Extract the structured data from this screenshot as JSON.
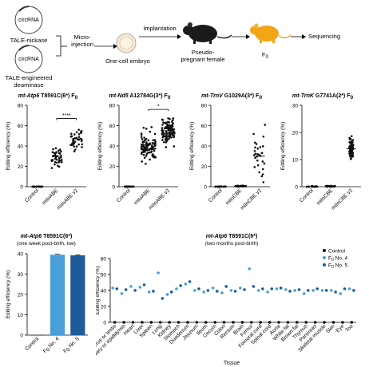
{
  "schematic": {
    "circle_label": "circRNA",
    "nickase_label": "TALE-nickase",
    "deaminase_label_1": "TALE-engineered",
    "deaminase_label_2": "deaminase",
    "micro_label_1": "Micro-",
    "micro_label_2": "injection",
    "embryo_label": "One-cell embryo",
    "implant_label": "Implantation",
    "pseudo_label_1": "Pseudo-",
    "pseudo_label_2": "pregnant female",
    "f0_label": "F",
    "f0_sub": "0",
    "seq_label": "Sequencing",
    "colors": {
      "mouse_black": "#1a1a1a",
      "mouse_orange": "#f2a516",
      "embryo": "#f6ead0"
    }
  },
  "chart_data": [
    {
      "type": "scatter",
      "title_gene": "mt-Atp6",
      "title_rest": " T8591C(6*) F",
      "title_sub": "0",
      "ylabel": "Editing efficiency (%)",
      "ylim": [
        0,
        80
      ],
      "yticks": [
        "0",
        "20",
        "40",
        "60",
        "80"
      ],
      "categories": [
        "Control",
        "mitoABE",
        "mitoABE v2"
      ],
      "groups": [
        {
          "n": 20,
          "mean": 0,
          "spread": 0.3
        },
        {
          "n": 40,
          "mean": 30,
          "spread": 8
        },
        {
          "n": 40,
          "mean": 47,
          "spread": 9
        }
      ],
      "significance": "****",
      "sig_between": [
        1,
        2
      ],
      "sig_y": 67
    },
    {
      "type": "scatter",
      "title_gene": "mt-Nd5",
      "title_rest": " A12784G(3*) F",
      "title_sub": "0",
      "ylabel": "Editing efficiency (%)",
      "ylim": [
        0,
        80
      ],
      "yticks": [
        "0",
        "20",
        "40",
        "60",
        "80"
      ],
      "categories": [
        "Control",
        "mitoABE",
        "mitoABE v2"
      ],
      "groups": [
        {
          "n": 20,
          "mean": 0,
          "spread": 0.3
        },
        {
          "n": 90,
          "mean": 41,
          "spread": 12
        },
        {
          "n": 110,
          "mean": 55,
          "spread": 10
        }
      ],
      "significance": "*",
      "sig_between": [
        1,
        2
      ],
      "sig_y": 76
    },
    {
      "type": "scatter",
      "title_gene": "mt-TrnV",
      "title_rest": " G1029A(3*) F",
      "title_sub": "0",
      "ylabel": "Editing efficiency (%)",
      "ylim": [
        0,
        80
      ],
      "yticks": [
        "0",
        "20",
        "40",
        "60",
        "80"
      ],
      "categories": [
        "Control",
        "mitoCBE",
        "mitoCBE v2"
      ],
      "groups": [
        {
          "n": 20,
          "mean": 0,
          "spread": 0.3
        },
        {
          "n": 25,
          "mean": 0.5,
          "spread": 0.5
        },
        {
          "n": 30,
          "mean": 30,
          "spread": 18
        }
      ],
      "significance": "",
      "sig_between": [],
      "sig_y": 0
    },
    {
      "type": "scatter",
      "title_gene": "mt-TrnK",
      "title_rest": " G7741A(2*) F",
      "title_sub": "0",
      "ylabel": "Editing efficiency (%)",
      "ylim": [
        0,
        30
      ],
      "yticks": [
        "0",
        "10",
        "20",
        "30"
      ],
      "categories": [
        "Control",
        "mitoCBE",
        "mitoCBE v2"
      ],
      "groups": [
        {
          "n": 20,
          "mean": 0,
          "spread": 0.2
        },
        {
          "n": 25,
          "mean": 0.2,
          "spread": 0.2
        },
        {
          "n": 100,
          "mean": 14,
          "spread": 3
        }
      ],
      "significance": "",
      "sig_between": [],
      "sig_y": 0
    },
    {
      "type": "bar",
      "title_gene": "mt-Atp6",
      "title_rest": " T8591C(6*)",
      "subtitle": "(one week post-birth, toe)",
      "ylabel": "Editing efficiency (%)",
      "ylim": [
        0,
        40
      ],
      "yticks": [
        "0",
        "10",
        "20",
        "30",
        "40"
      ],
      "categories": [
        "Control",
        "F0 No. 4",
        "F0 No. 5"
      ],
      "cat_main": [
        "Control",
        "F",
        "F"
      ],
      "cat_sub": [
        "",
        "0",
        "0"
      ],
      "cat_rest": [
        "",
        " No. 4",
        " No. 5"
      ],
      "values": [
        0,
        39.5,
        39.2
      ],
      "colors": [
        "#4a4a4a",
        "#4a9fd8",
        "#1f5a99"
      ]
    },
    {
      "type": "scatter",
      "title_gene": "mt-Atp6",
      "title_rest": " T8591C(6*)",
      "subtitle": "(two months post-birth)",
      "xlabel": "Tissue",
      "ylabel": "Editing efficiency (%)",
      "ylim": [
        0,
        80
      ],
      "yticks": [
        "0",
        "20",
        "40",
        "60",
        "80"
      ],
      "categories": [
        "Uterus or testis",
        "Ovary or epididymis",
        "Heart",
        "Liver",
        "Spleen",
        "Lung",
        "Kidney",
        "Stomach",
        "Duodenum",
        "Jejunum",
        "Ileum",
        "Cecum",
        "Colon",
        "Rectum",
        "Brain",
        "Femur",
        "Femoral cord",
        "Spinal cord",
        "Aorta",
        "White fat",
        "Brown fat",
        "Thymus",
        "Pancreas",
        "Skeletal muscle",
        "Skin",
        "Eye",
        "Toe"
      ],
      "series": [
        {
          "name": "Control",
          "color": "#111111",
          "values": [
            0,
            0,
            0,
            0,
            0,
            0,
            0,
            0,
            0,
            0,
            0,
            0,
            0,
            0,
            0,
            0,
            0,
            0,
            0,
            0,
            0,
            0,
            0,
            0,
            0,
            0,
            0
          ]
        },
        {
          "name_main": "F",
          "name_sub": "0",
          "name_rest": " No. 4",
          "color": "#4a9fd8",
          "values": [
            43,
            36,
            45,
            44,
            38,
            62,
            35,
            42,
            48,
            40,
            38,
            43,
            37,
            40,
            43,
            67,
            40,
            38,
            42,
            41,
            40,
            36,
            40,
            40,
            40,
            36,
            42
          ]
        },
        {
          "name_main": "F",
          "name_sub": "0",
          "name_rest": " No. 5",
          "color": "#1f5a99",
          "values": [
            42,
            41,
            40,
            47,
            39,
            30,
            38,
            46,
            51,
            42,
            40,
            39,
            45,
            39,
            41,
            45,
            42,
            42,
            43,
            39,
            41,
            40,
            42,
            40,
            38,
            42,
            40
          ]
        }
      ]
    }
  ]
}
